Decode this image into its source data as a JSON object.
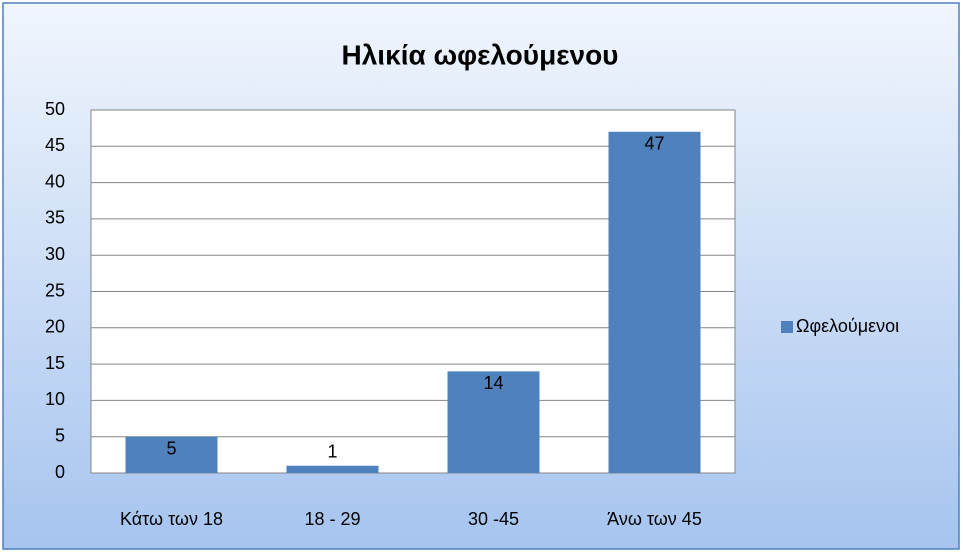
{
  "chart_data": {
    "type": "bar",
    "title": "Ηλικία ωφελούμενου",
    "categories": [
      "Κάτω των 18",
      "18 - 29",
      "30 -45",
      "Άνω των 45"
    ],
    "series": [
      {
        "name": "Ωφελούμενοι",
        "color": "#4f81bd",
        "values": [
          5,
          1,
          14,
          47
        ]
      }
    ],
    "ylim": [
      0,
      50
    ],
    "yticks": [
      0,
      5,
      10,
      15,
      20,
      25,
      30,
      35,
      40,
      45,
      50
    ],
    "grid": true,
    "legend": "right"
  }
}
